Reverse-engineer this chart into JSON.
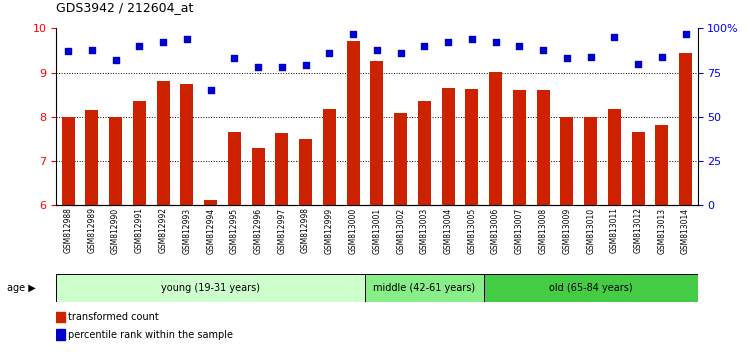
{
  "title": "GDS3942 / 212604_at",
  "samples": [
    "GSM812988",
    "GSM812989",
    "GSM812990",
    "GSM812991",
    "GSM812992",
    "GSM812993",
    "GSM812994",
    "GSM812995",
    "GSM812996",
    "GSM812997",
    "GSM812998",
    "GSM812999",
    "GSM813000",
    "GSM813001",
    "GSM813002",
    "GSM813003",
    "GSM813004",
    "GSM813005",
    "GSM813006",
    "GSM813007",
    "GSM813008",
    "GSM813009",
    "GSM813010",
    "GSM813011",
    "GSM813012",
    "GSM813013",
    "GSM813014"
  ],
  "bar_values": [
    8.0,
    8.15,
    8.0,
    8.35,
    8.82,
    8.75,
    6.12,
    7.65,
    7.3,
    7.63,
    7.5,
    8.17,
    9.72,
    9.27,
    8.08,
    8.35,
    8.65,
    8.62,
    9.02,
    8.6,
    8.6,
    8.0,
    8.0,
    8.18,
    7.65,
    7.82,
    9.45
  ],
  "percentile_values": [
    87,
    88,
    82,
    90,
    92,
    94,
    65,
    83,
    78,
    78,
    79,
    86,
    97,
    88,
    86,
    90,
    92,
    94,
    92,
    90,
    88,
    83,
    84,
    95,
    80,
    84,
    97
  ],
  "bar_color": "#cc2200",
  "dot_color": "#0000cc",
  "groups": [
    {
      "label": "young (19-31 years)",
      "start": 0,
      "end": 13,
      "color": "#ccffcc"
    },
    {
      "label": "middle (42-61 years)",
      "start": 13,
      "end": 18,
      "color": "#88ee88"
    },
    {
      "label": "old (65-84 years)",
      "start": 18,
      "end": 27,
      "color": "#44cc44"
    }
  ],
  "age_label": "age",
  "legend_bar_label": "transformed count",
  "legend_dot_label": "percentile rank within the sample",
  "tick_area_color": "#cccccc",
  "ytick_labels_right": [
    "0",
    "25",
    "50",
    "75",
    "100%"
  ]
}
